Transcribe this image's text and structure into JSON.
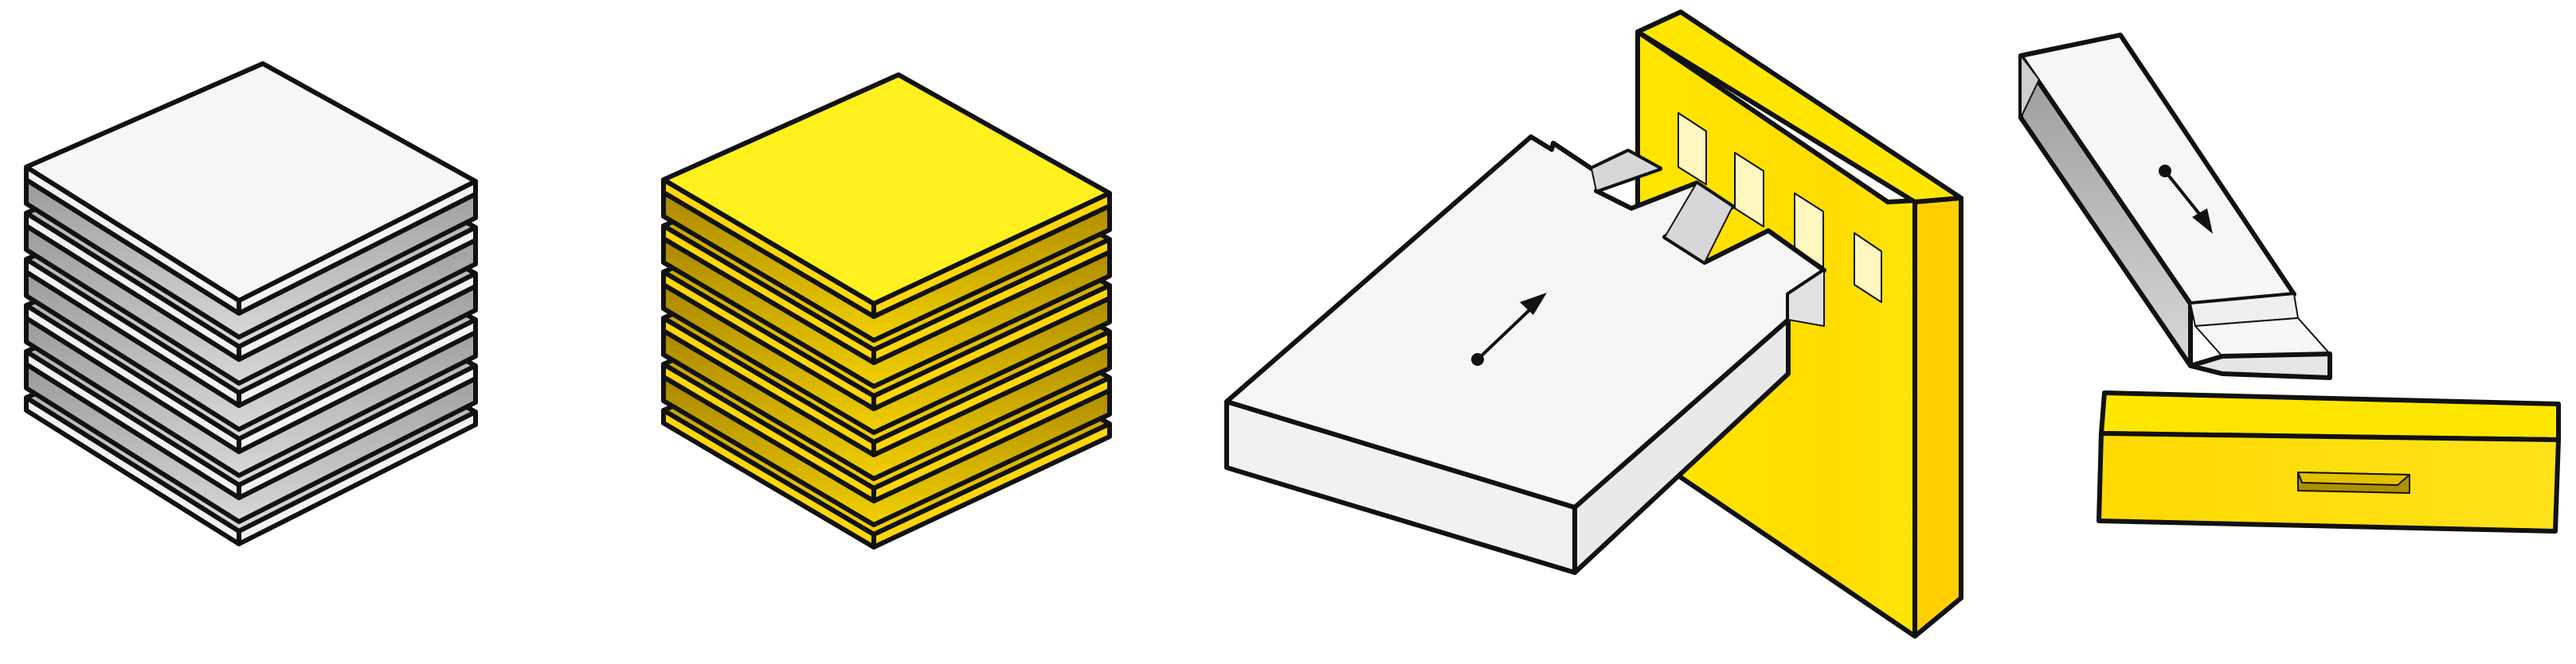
{
  "figure": {
    "colors": {
      "white_face": "#f7f7f7",
      "white_shadow": "#b9b9b9",
      "yellow_face": "#fff01e",
      "yellow_side": "#ffd60a",
      "yellow_shadow": "#b89600",
      "outline": "#111111"
    },
    "panels": [
      {
        "name": "white-plywood-stack",
        "material": "white",
        "layers": 6
      },
      {
        "name": "yellow-plywood-stack",
        "material": "yellow",
        "layers": 6
      },
      {
        "name": "finger-joint",
        "parts": [
          "white-board",
          "yellow-board"
        ],
        "arrow": "insert-direction"
      },
      {
        "name": "mortise-tenon-joint",
        "parts": [
          "white-tenon-beam",
          "yellow-mortise-beam"
        ],
        "arrow": "insert-direction"
      }
    ]
  }
}
